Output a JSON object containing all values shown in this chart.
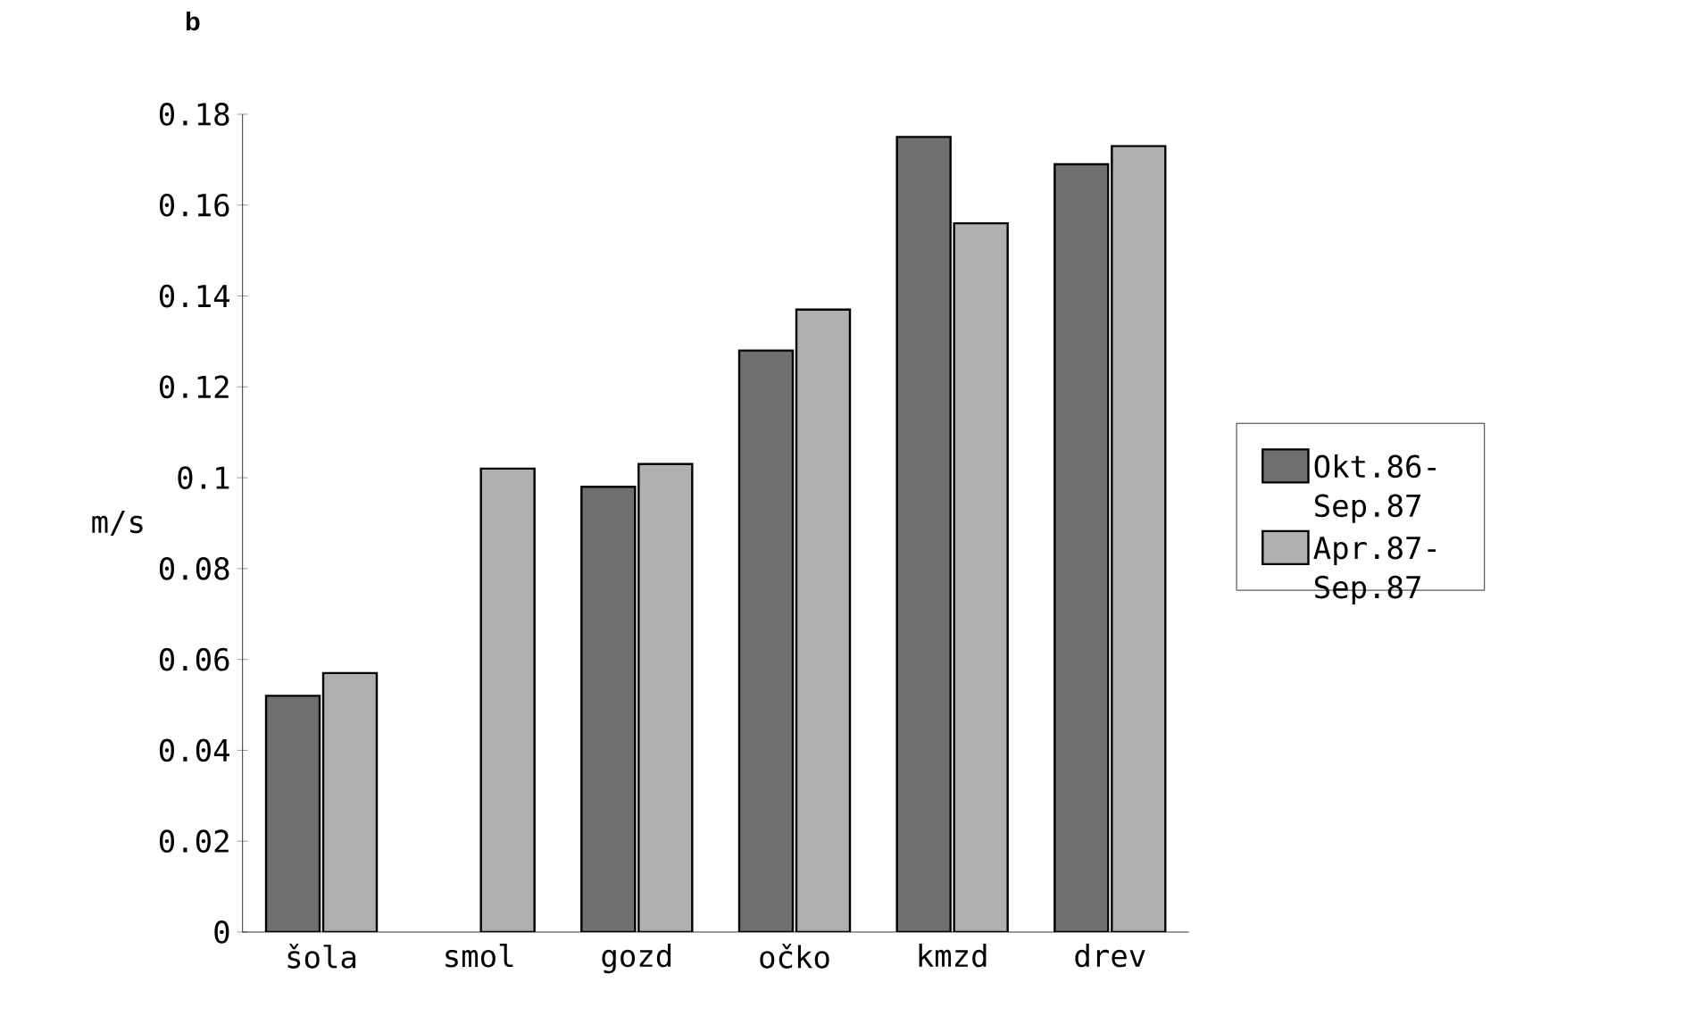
{
  "chart_data": {
    "type": "bar",
    "ylabel": "m/s",
    "categories": [
      "šola",
      "smol",
      "gozd",
      "očko",
      "kmzd",
      "drev"
    ],
    "series": [
      {
        "name": "Okt.86-Sep.87",
        "color": "#707070",
        "values": [
          0.052,
          null,
          0.098,
          0.128,
          0.175,
          0.169
        ]
      },
      {
        "name": "Apr.87-Sep.87",
        "color": "#b0b0b0",
        "values": [
          0.057,
          0.102,
          0.103,
          0.137,
          0.156,
          0.173
        ]
      }
    ],
    "ylim": [
      0,
      0.18
    ],
    "yticks": [
      0,
      0.02,
      0.04,
      0.06,
      0.08,
      0.1,
      0.12,
      0.14,
      0.16,
      0.18
    ],
    "grid": false,
    "legend": "right",
    "annotations": [
      "b"
    ]
  }
}
